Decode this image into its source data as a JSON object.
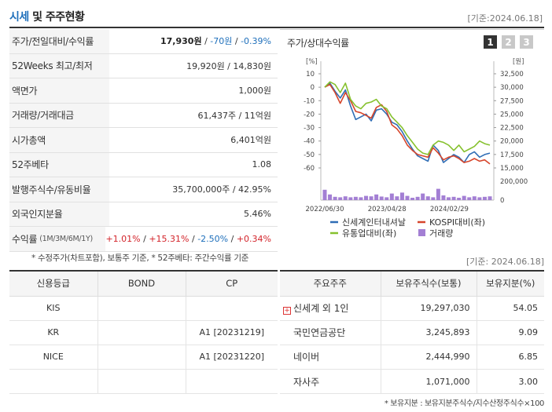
{
  "header": {
    "title_accent": "시세",
    "title_rest": "및 주주현황",
    "date": "[기준:2024.06.18]"
  },
  "summary": {
    "rows": [
      {
        "label": "주가/전일대비/수익률",
        "price": "17,930원",
        "sep1": " / ",
        "change": "-70원",
        "sep2": " / ",
        "rate": "-0.39%"
      },
      {
        "label": "52Weeks 최고/최저",
        "value": "19,920원 / 14,830원"
      },
      {
        "label": "액면가",
        "value": "1,000원"
      },
      {
        "label": "거래량/거래대금",
        "value": "61,437주 / 11억원"
      },
      {
        "label": "시가총액",
        "value": "6,401억원"
      },
      {
        "label": "52주베타",
        "value": "1.08"
      },
      {
        "label": "발행주식수/유동비율",
        "value": "35,700,000주 / 42.95%"
      },
      {
        "label": "외국인지분율",
        "value": "5.46%"
      }
    ],
    "returns": {
      "label": "수익률",
      "label_small": "(1M/3M/6M/1Y)",
      "r1m": "+1.01%",
      "r3m": "+15.31%",
      "r6m": "-2.50%",
      "r1y": "+0.34%",
      "sep": " / "
    },
    "note": "* 수정주가(차트포함), 보통주 기준, * 52주베타: 주간수익률 기준"
  },
  "chart_panel": {
    "title": "주가/상대수익률",
    "tabs": [
      "1",
      "2",
      "3"
    ]
  },
  "chart_data": {
    "type": "line",
    "left_axis_unit": "[%]",
    "right_axis_unit": "[원]",
    "left_ticks": [
      "10",
      "0",
      "-10",
      "-20",
      "-30",
      "-40",
      "-50",
      "-60"
    ],
    "left_ylim": [
      -60,
      10
    ],
    "right_ticks": [
      "32,500",
      "30,000",
      "27,500",
      "25,000",
      "22,500",
      "20,000",
      "17,500",
      "15,000"
    ],
    "right_ylim": [
      15000,
      32500
    ],
    "volume_ticks": [
      "200,000",
      "0"
    ],
    "volume_ylim": [
      0,
      200000
    ],
    "x_ticks": [
      "2022/06/30",
      "2023/04/28",
      "2024/02/29"
    ],
    "x_tick_positions": [
      0,
      0.36,
      0.72
    ],
    "series": [
      {
        "name": "신세계인터내셔날",
        "color": "#2f6db5",
        "values": [
          0,
          3,
          -3,
          -8,
          -2,
          -14,
          -24,
          -22,
          -20,
          -25,
          -17,
          -16,
          -20,
          -26,
          -28,
          -33,
          -40,
          -46,
          -51,
          -53,
          -55,
          -43,
          -47,
          -56,
          -53,
          -50,
          -52,
          -56,
          -50,
          -48,
          -52,
          -50,
          -49
        ]
      },
      {
        "name": "KOSPI대비(좌)",
        "color": "#d6452b",
        "values": [
          0,
          2,
          -4,
          -12,
          -4,
          -10,
          -18,
          -19,
          -21,
          -23,
          -15,
          -13,
          -18,
          -28,
          -31,
          -36,
          -43,
          -47,
          -50,
          -51,
          -52,
          -45,
          -49,
          -54,
          -52,
          -51,
          -53,
          -56,
          -55,
          -53,
          -55,
          -54,
          -57
        ]
      },
      {
        "name": "유통업대비(좌)",
        "color": "#86c12e",
        "values": [
          0,
          4,
          2,
          -4,
          3,
          -9,
          -14,
          -16,
          -12,
          -11,
          -9,
          -14,
          -16,
          -22,
          -26,
          -30,
          -36,
          -41,
          -46,
          -49,
          -50,
          -43,
          -40,
          -41,
          -43,
          -47,
          -43,
          -48,
          -46,
          -44,
          -40,
          -42,
          -43
        ]
      }
    ],
    "volume_series": {
      "name": "거래량",
      "color": "#a37fd4",
      "values": [
        110000,
        60000,
        35000,
        30000,
        40000,
        30000,
        35000,
        30000,
        45000,
        40000,
        60000,
        38000,
        30000,
        70000,
        40000,
        80000,
        45000,
        25000,
        35000,
        70000,
        40000,
        30000,
        120000,
        50000,
        30000,
        35000,
        25000,
        45000,
        30000,
        40000,
        30000,
        35000,
        40000
      ]
    }
  },
  "credit": {
    "headers": [
      "신용등급",
      "BOND",
      "CP"
    ],
    "rows": [
      [
        "KIS",
        "",
        ""
      ],
      [
        "KR",
        "",
        "A1  [20231219]"
      ],
      [
        "NICE",
        "",
        "A1  [20231220]"
      ],
      [
        "",
        "",
        ""
      ]
    ]
  },
  "owners": {
    "date": "[기준: 2024.06.18]",
    "headers": [
      "주요주주",
      "보유주식수(보통)",
      "보유지분(%)"
    ],
    "rows": [
      {
        "name": "신세계 외 1인",
        "shares": "19,297,030",
        "pct": "54.05",
        "expand": "+"
      },
      {
        "name": "국민연금공단",
        "shares": "3,245,893",
        "pct": "9.09"
      },
      {
        "name": "네이버",
        "shares": "2,444,990",
        "pct": "6.85"
      },
      {
        "name": "자사주",
        "shares": "1,071,000",
        "pct": "3.00"
      }
    ],
    "note": "* 보유지분 : 보유지분주식수/지수산정주식수×100"
  }
}
